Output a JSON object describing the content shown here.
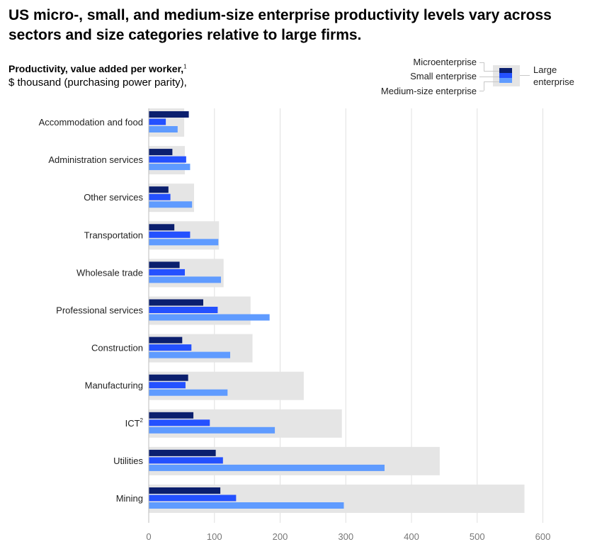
{
  "header": {
    "title": "US micro-, small, and medium-size enterprise productivity levels vary across sectors and size categories relative to large firms.",
    "subtitle": "Productivity, value added per worker,",
    "subtitle_footnote": "1",
    "unit": "$ thousand (purchasing power parity),"
  },
  "legend": {
    "micro": "Microenterprise",
    "small": "Small enterprise",
    "medium": "Medium-size enterprise",
    "large": "Large enterprise"
  },
  "colors": {
    "micro": "#0b1f6e",
    "small": "#2451ff",
    "medium": "#5f9bff",
    "large": "#e5e5e5",
    "grid": "#e0e0e0"
  },
  "chart_data": {
    "type": "bar",
    "orientation": "horizontal",
    "categories": [
      "Accommodation and food",
      "Administration services",
      "Other services",
      "Transportation",
      "Wholesale trade",
      "Professional services",
      "Construction",
      "Manufacturing",
      "ICT",
      "Utilities",
      "Mining"
    ],
    "category_footnotes": [
      "",
      "",
      "",
      "",
      "",
      "",
      "",
      "",
      "2",
      "",
      ""
    ],
    "series": [
      {
        "name": "Microenterprise",
        "values": [
          61,
          36,
          30,
          39,
          47,
          83,
          51,
          60,
          68,
          102,
          109
        ]
      },
      {
        "name": "Small enterprise",
        "values": [
          26,
          57,
          33,
          63,
          55,
          105,
          65,
          56,
          93,
          113,
          133
        ]
      },
      {
        "name": "Medium-size enterprise",
        "values": [
          44,
          63,
          66,
          106,
          110,
          184,
          124,
          120,
          192,
          359,
          297
        ]
      },
      {
        "name": "Large enterprise",
        "values": [
          54,
          55,
          69,
          107,
          114,
          155,
          158,
          236,
          294,
          443,
          572
        ]
      }
    ],
    "xticks": [
      0,
      100,
      200,
      300,
      400,
      500,
      600
    ],
    "xlim": [
      0,
      600
    ],
    "grid": true,
    "legend_position": "top-right"
  }
}
